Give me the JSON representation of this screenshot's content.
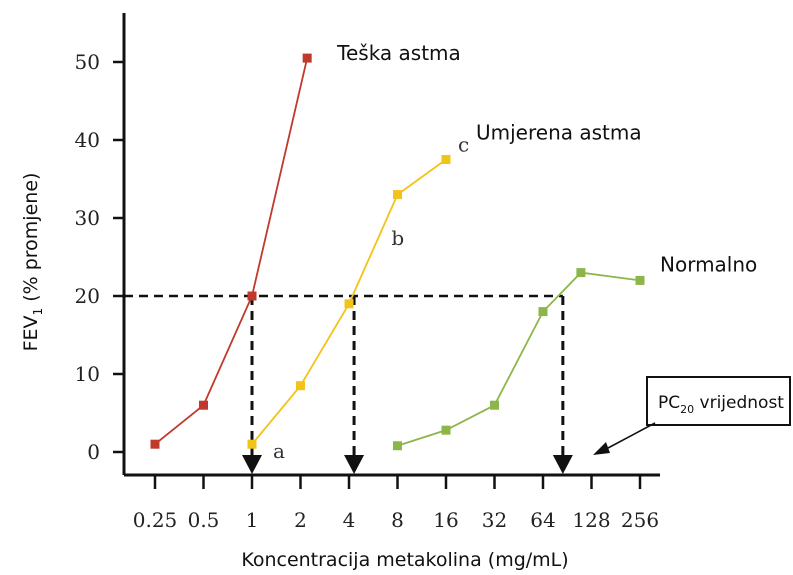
{
  "chart_data": {
    "type": "line",
    "x_scale": "log2",
    "xlabel": "Koncentracija metakolina (mg/mL)",
    "ylabel": "FEV₁ (% promjene)",
    "x_ticks": [
      "0.25",
      "0.5",
      "1",
      "2",
      "4",
      "8",
      "16",
      "32",
      "64",
      "128",
      "256"
    ],
    "y_ticks": [
      "0",
      "10",
      "20",
      "30",
      "40",
      "50"
    ],
    "ylim": [
      0,
      50
    ],
    "grid": false,
    "series": [
      {
        "name": "Teška astma",
        "color": "#c0392b",
        "points": [
          [
            0.25,
            1
          ],
          [
            0.5,
            6
          ],
          [
            1,
            20
          ],
          [
            2.2,
            50.5
          ]
        ]
      },
      {
        "name": "Umjerena astma",
        "color": "#f2c318",
        "points": [
          [
            1,
            1
          ],
          [
            2,
            8.5
          ],
          [
            4,
            19
          ],
          [
            8,
            33
          ],
          [
            16,
            37.5
          ]
        ]
      },
      {
        "name": "Normalno",
        "color": "#8db54a",
        "points": [
          [
            8,
            0.8
          ],
          [
            16,
            2.8
          ],
          [
            32,
            6
          ],
          [
            64,
            18
          ],
          [
            110,
            23
          ],
          [
            256,
            22
          ]
        ]
      }
    ],
    "threshold": {
      "y": 20
    },
    "pc20_values": [
      1,
      4.3,
      85
    ],
    "annotations": [
      "a",
      "b",
      "c"
    ],
    "pc20_label": {
      "main": "PC",
      "sub": "20",
      "rest": " vrijednost"
    }
  }
}
